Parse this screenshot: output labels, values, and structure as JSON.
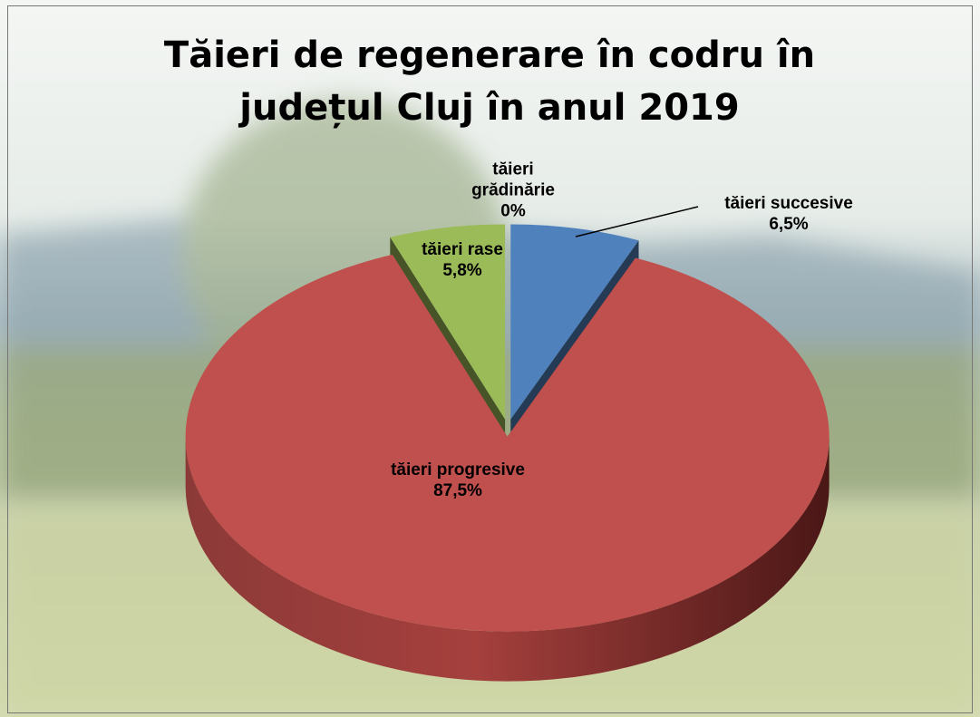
{
  "chart_data": {
    "type": "pie3d",
    "title": "Tăieri de regenerare în codru în județul Cluj în anul 2019",
    "categories": [
      "tăieri succesive",
      "tăieri progresive",
      "tăieri rase",
      "tăieri grădinărie"
    ],
    "values": [
      6.5,
      87.5,
      5.8,
      0
    ],
    "value_labels": [
      "6,5%",
      "87,5%",
      "5,8%",
      "0%"
    ],
    "colors": [
      "#4f81bd",
      "#c0504d",
      "#9bbb59",
      "#8064a2"
    ]
  }
}
